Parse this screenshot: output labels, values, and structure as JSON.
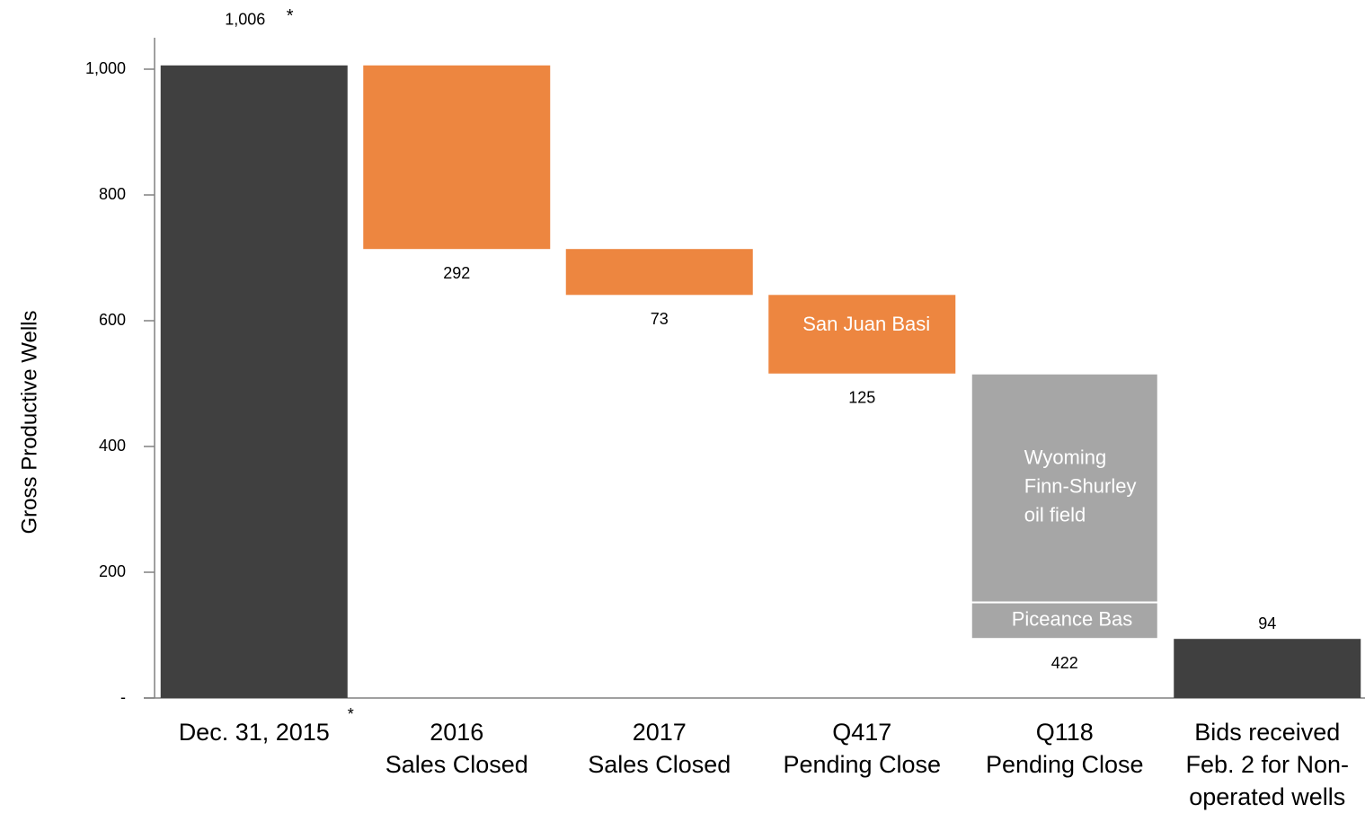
{
  "chart_data": {
    "type": "waterfall",
    "y_axis_label": "Gross Productive Wells",
    "ylim": [
      0,
      1050
    ],
    "yticks": [
      {
        "value": 0,
        "label": "-"
      },
      200,
      400,
      600,
      800,
      {
        "value": 1000,
        "label": "1,000"
      }
    ],
    "steps": [
      {
        "label": [
          "Dec. 31, 2015"
        ],
        "value": 1006,
        "value_label": "1,006",
        "marker": "*",
        "kind": "total",
        "color": "#404040"
      },
      {
        "label": [
          "2016",
          "Sales Closed"
        ],
        "value": 292,
        "kind": "decrease",
        "color": "#ed8640"
      },
      {
        "label": [
          "2017",
          "Sales Closed"
        ],
        "value": 73,
        "kind": "decrease",
        "color": "#ed8640"
      },
      {
        "label": [
          "Q417",
          "Pending Close"
        ],
        "value": 125,
        "kind": "decrease",
        "color": "#ed8640",
        "note": "San Juan Basi"
      },
      {
        "label": [
          "Q118",
          "Pending Close"
        ],
        "value": 422,
        "kind": "decrease",
        "segments": [
          {
            "name": [
              "Wyoming",
              "Finn-Shurley",
              "oil field"
            ],
            "value": 364,
            "color": "#a6a6a6"
          },
          {
            "name": [
              "Piceance Bas"
            ],
            "value": 58,
            "color": "#a6a6a6"
          }
        ]
      },
      {
        "label": [
          "Bids received",
          "Feb. 2 for Non-",
          "operated wells"
        ],
        "value": 94,
        "kind": "total",
        "color": "#404040"
      }
    ]
  }
}
